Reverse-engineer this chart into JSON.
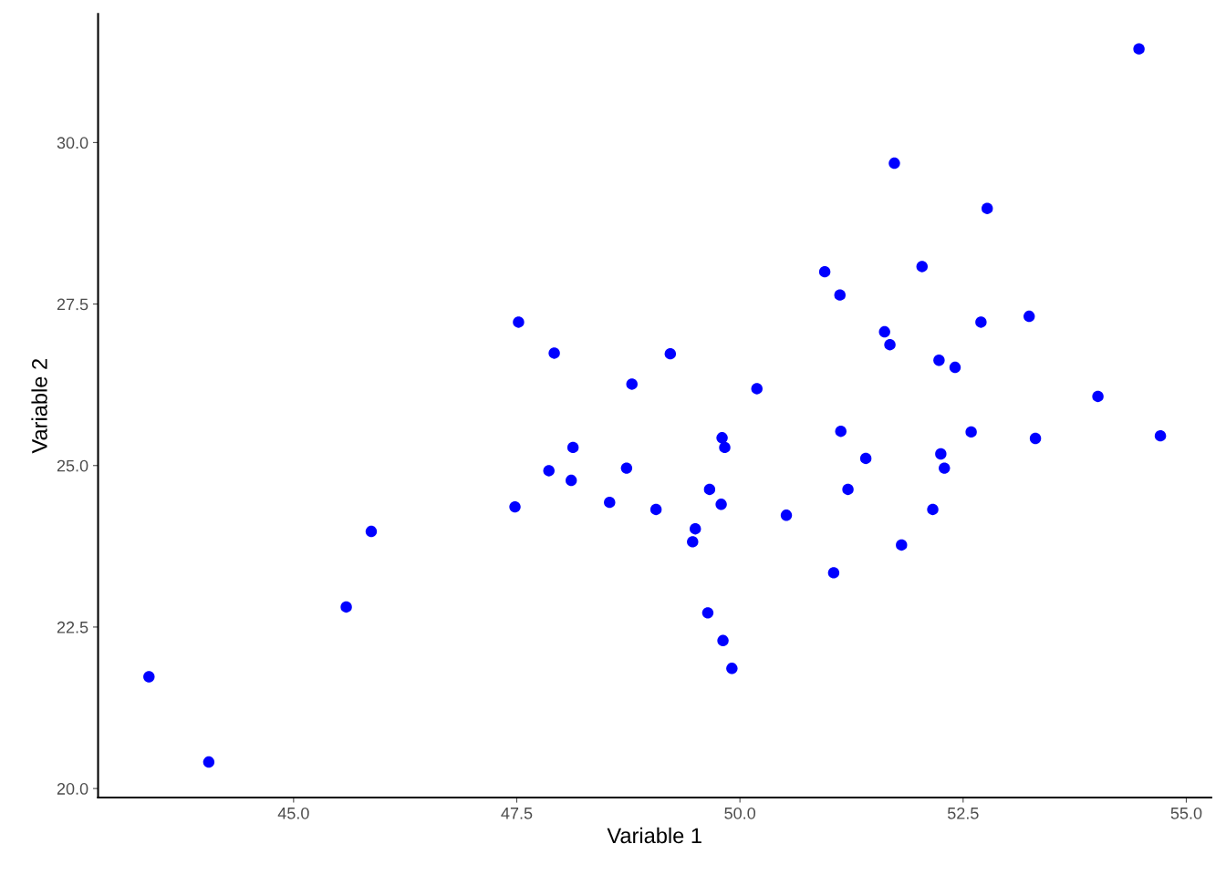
{
  "chart_data": {
    "type": "scatter",
    "xlabel": "Variable 1",
    "ylabel": "Variable 2",
    "x": [
      43.38,
      44.05,
      45.59,
      45.87,
      47.48,
      47.52,
      47.86,
      47.92,
      48.11,
      48.13,
      48.54,
      48.73,
      48.79,
      49.06,
      49.22,
      49.5,
      49.47,
      49.66,
      49.64,
      49.79,
      49.8,
      49.83,
      49.81,
      49.91,
      50.19,
      50.52,
      50.95,
      51.05,
      51.12,
      51.13,
      51.21,
      51.41,
      51.62,
      51.68,
      51.73,
      51.81,
      52.04,
      52.16,
      52.23,
      52.25,
      52.29,
      52.41,
      52.59,
      52.7,
      52.77,
      53.24,
      53.31,
      54.01,
      54.47,
      54.71
    ],
    "series": [
      {
        "color": "#0000ff",
        "values": [
          21.73,
          20.41,
          22.81,
          23.98,
          24.36,
          27.22,
          24.92,
          26.74,
          24.77,
          25.28,
          24.43,
          24.96,
          26.26,
          24.32,
          26.73,
          24.02,
          23.82,
          24.63,
          22.72,
          24.4,
          25.43,
          25.28,
          22.29,
          21.86,
          26.19,
          24.23,
          28.0,
          23.34,
          27.64,
          25.53,
          24.63,
          25.11,
          27.07,
          26.87,
          29.68,
          23.77,
          28.08,
          24.32,
          26.63,
          25.18,
          24.96,
          26.52,
          25.52,
          27.22,
          28.98,
          27.31,
          25.42,
          26.07,
          31.45,
          25.46
        ]
      }
    ],
    "xlim": [
      42.81,
      55.28
    ],
    "ylim": [
      19.86,
      31.99
    ],
    "xticks": [
      {
        "value": 45,
        "label": "45.0"
      },
      {
        "value": 47.5,
        "label": "47.5"
      },
      {
        "value": 50,
        "label": "50.0"
      },
      {
        "value": 52.5,
        "label": "52.5"
      },
      {
        "value": 55,
        "label": "55.0"
      }
    ],
    "yticks": [
      {
        "value": 20,
        "label": "20.0"
      },
      {
        "value": 22.5,
        "label": "22.5"
      },
      {
        "value": 25,
        "label": "25.0"
      },
      {
        "value": 27.5,
        "label": "27.5"
      },
      {
        "value": 30,
        "label": "30.0"
      }
    ],
    "grid": false,
    "marker": "circle"
  }
}
